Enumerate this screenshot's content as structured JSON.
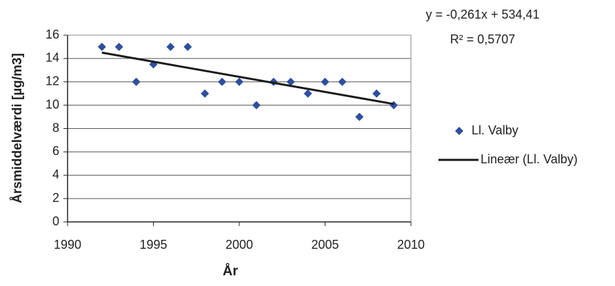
{
  "chart_data": {
    "type": "scatter",
    "x_label": "År",
    "y_label": "Årsmiddelværdi [µg/m3]",
    "annotations": [
      "y = -0,261x + 534,41",
      "R² = 0,5707"
    ],
    "series": [
      {
        "name": "Ll. Valby",
        "color": "#2e4f9e",
        "kind": "markers",
        "x": [
          1992,
          1993,
          1994,
          1995,
          1996,
          1997,
          1998,
          1999,
          2000,
          2001,
          2002,
          2003,
          2004,
          2005,
          2006,
          2007,
          2008,
          2009
        ],
        "values": [
          15,
          15,
          12,
          13.5,
          15,
          15,
          11,
          12,
          12,
          10,
          12,
          12,
          11,
          12,
          12,
          9,
          11,
          10
        ]
      },
      {
        "name": "Lineær (Ll. Valby)",
        "color": "#1a1a1a",
        "kind": "line",
        "x": [
          1992,
          2009
        ],
        "values": [
          14.5,
          10.1
        ]
      }
    ],
    "xlim": [
      1990,
      2010
    ],
    "xticks": [
      1990,
      1995,
      2000,
      2005,
      2010
    ],
    "ylim": [
      0,
      16
    ],
    "yticks": [
      0,
      2,
      4,
      6,
      8,
      10,
      12,
      14,
      16
    ],
    "grid": true
  }
}
